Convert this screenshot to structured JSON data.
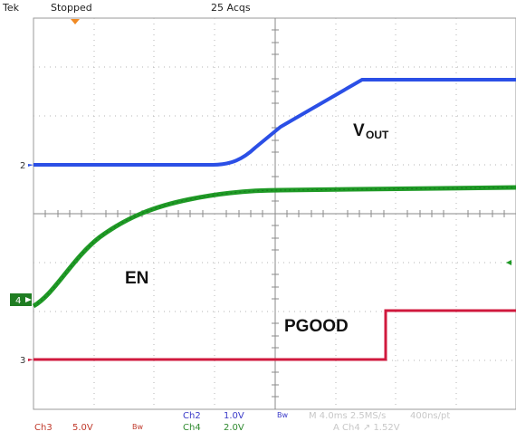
{
  "header": {
    "brand": "Tek",
    "status": "Stopped",
    "acquisitions": "25 Acqs"
  },
  "traces": {
    "vout_label_main": "V",
    "vout_label_sub": "OUT",
    "en_label": "EN",
    "pgood_label": "PGOOD"
  },
  "markers": {
    "ch2": "2",
    "ch4": "4",
    "ch3": "3"
  },
  "footer": {
    "ch3_name": "Ch3",
    "ch3_scale": "5.0V",
    "ch3_bw": "Bw",
    "ch2_name": "Ch2",
    "ch2_scale": "1.0V",
    "ch2_bw": "Bw",
    "ch4_name": "Ch4",
    "ch4_scale": "2.0V",
    "timebase": "M 4.0ms 2.5MS/s",
    "record": "400ns/pt",
    "trigger": "A  Ch4  ↗ 1.52V"
  },
  "colors": {
    "vout": "#2b4fe6",
    "en": "#1f9a26",
    "pgood": "#d0193d",
    "grid": "#9a9a9a",
    "ch3_text": "#c0392b",
    "ch2_text": "#3a3ac8",
    "ch4_text": "#2f8a2f"
  }
}
